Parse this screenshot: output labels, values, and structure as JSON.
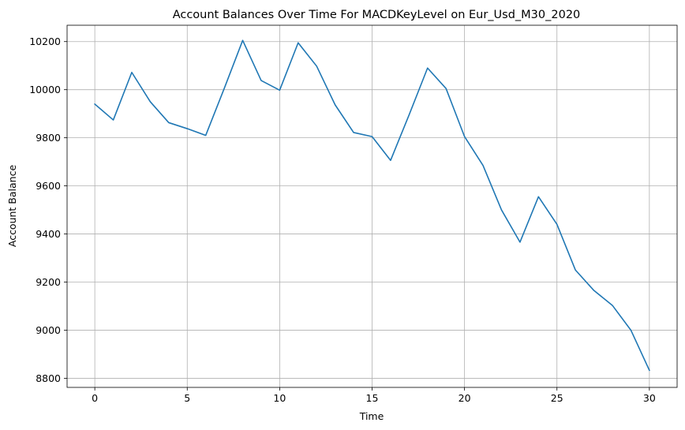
{
  "chart_data": {
    "type": "line",
    "title": "Account Balances Over Time For MACDKeyLevel on Eur_Usd_M30_2020",
    "xlabel": "Time",
    "ylabel": "Account Balance",
    "xlim": [
      -1.5,
      31.5
    ],
    "ylim": [
      8762,
      10268
    ],
    "xticks": [
      0,
      5,
      10,
      15,
      20,
      25,
      30
    ],
    "yticks": [
      8800,
      9000,
      9200,
      9400,
      9600,
      9800,
      10000,
      10200
    ],
    "grid": true,
    "series": [
      {
        "color": "#1f77b4",
        "x": [
          0,
          1,
          2,
          3,
          4,
          5,
          6,
          7,
          8,
          9,
          10,
          11,
          12,
          13,
          14,
          15,
          16,
          17,
          18,
          19,
          20,
          21,
          22,
          23,
          24,
          25,
          26,
          27,
          28,
          29,
          30
        ],
        "y": [
          9940,
          9874,
          10072,
          9950,
          9863,
          9838,
          9810,
          10005,
          10205,
          10038,
          9998,
          10195,
          10098,
          9937,
          9822,
          9805,
          9706,
          9895,
          10090,
          10005,
          9805,
          9685,
          9500,
          9366,
          9555,
          9440,
          9250,
          9165,
          9103,
          9000,
          8833
        ]
      }
    ]
  }
}
